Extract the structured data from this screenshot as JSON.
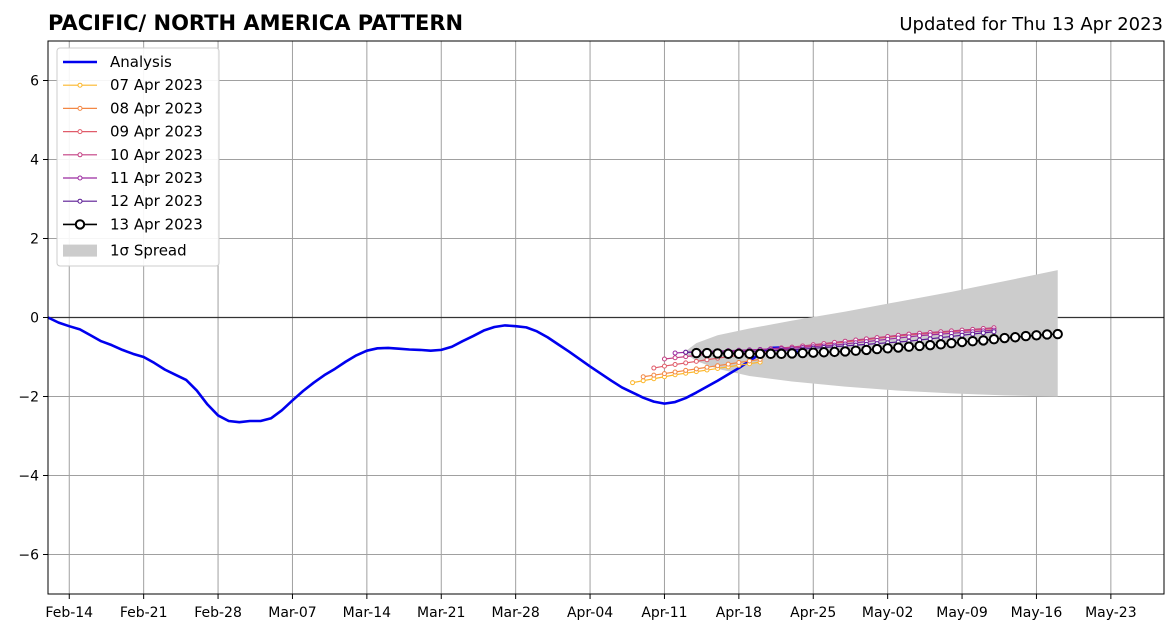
{
  "chart_data": {
    "type": "line",
    "title": "PACIFIC/ NORTH AMERICA PATTERN",
    "subtitle": "Updated for Thu 13 Apr 2023",
    "xlabel": "",
    "ylabel": "",
    "x_start": "2023-02-12",
    "x_end": "2023-05-28",
    "ylim": [
      -7,
      7
    ],
    "yticks": [
      -6,
      -4,
      -2,
      0,
      2,
      4,
      6
    ],
    "xticks": [
      "Feb-14",
      "Feb-21",
      "Feb-28",
      "Mar-07",
      "Mar-14",
      "Mar-21",
      "Mar-28",
      "Apr-04",
      "Apr-11",
      "Apr-18",
      "Apr-25",
      "May-02",
      "May-09",
      "May-16",
      "May-23"
    ],
    "xtick_dates": [
      "2023-02-14",
      "2023-02-21",
      "2023-02-28",
      "2023-03-07",
      "2023-03-14",
      "2023-03-21",
      "2023-03-28",
      "2023-04-04",
      "2023-04-11",
      "2023-04-18",
      "2023-04-25",
      "2023-05-02",
      "2023-05-09",
      "2023-05-16",
      "2023-05-23"
    ],
    "grid": true,
    "legend_position": "top-left",
    "analysis": {
      "name": "Analysis",
      "color": "#0000ee",
      "start_date": "2023-02-12",
      "values": [
        0.0,
        -0.13,
        -0.22,
        -0.3,
        -0.45,
        -0.6,
        -0.7,
        -0.82,
        -0.92,
        -1.0,
        -1.15,
        -1.32,
        -1.45,
        -1.58,
        -1.85,
        -2.2,
        -2.48,
        -2.62,
        -2.65,
        -2.62,
        -2.62,
        -2.55,
        -2.35,
        -2.1,
        -1.86,
        -1.65,
        -1.46,
        -1.3,
        -1.12,
        -0.96,
        -0.84,
        -0.78,
        -0.77,
        -0.79,
        -0.81,
        -0.82,
        -0.84,
        -0.82,
        -0.74,
        -0.6,
        -0.47,
        -0.33,
        -0.24,
        -0.2,
        -0.22,
        -0.25,
        -0.35,
        -0.5,
        -0.68,
        -0.86,
        -1.05,
        -1.24,
        -1.42,
        -1.6,
        -1.77,
        -1.9,
        -2.03,
        -2.13,
        -2.18,
        -2.14,
        -2.04,
        -1.9,
        -1.75,
        -1.6,
        -1.44,
        -1.28,
        -1.1,
        -0.92,
        -0.77,
        -0.76,
        -0.84,
        -0.9
      ]
    },
    "series": [
      {
        "name": "07 Apr 2023",
        "color": "#fcb72c",
        "start_date": "2023-04-08",
        "values": [
          -1.65,
          -1.6,
          -1.55,
          -1.5,
          -1.45,
          -1.41,
          -1.37,
          -1.33,
          -1.29,
          -1.25,
          -1.21,
          -1.17,
          -1.13
        ]
      },
      {
        "name": "08 Apr 2023",
        "color": "#f38744",
        "start_date": "2023-04-09",
        "values": [
          -1.5,
          -1.46,
          -1.42,
          -1.38,
          -1.34,
          -1.3,
          -1.26,
          -1.22,
          -1.18,
          -1.14,
          -1.1,
          -1.06
        ]
      },
      {
        "name": "09 Apr 2023",
        "color": "#e05c6a",
        "start_date": "2023-04-10",
        "values": [
          -1.28,
          -1.23,
          -1.19,
          -1.15,
          -1.11,
          -1.07,
          -1.03,
          -0.99,
          -0.96,
          -0.92,
          -0.89,
          -0.85,
          -0.82,
          -0.78,
          -0.75,
          -0.71,
          -0.68,
          -0.65,
          -0.62,
          -0.59,
          -0.56,
          -0.53,
          -0.5,
          -0.47,
          -0.44,
          -0.42,
          -0.4,
          -0.38,
          -0.36,
          -0.34,
          -0.32,
          -0.3,
          -0.28
        ]
      },
      {
        "name": "10 Apr 2023",
        "color": "#c33e82",
        "start_date": "2023-04-11",
        "values": [
          -1.05,
          -1.02,
          -0.99,
          -0.96,
          -0.93,
          -0.9,
          -0.87,
          -0.85,
          -0.83,
          -0.81,
          -0.79,
          -0.77,
          -0.75,
          -0.72,
          -0.69,
          -0.66,
          -0.63,
          -0.6,
          -0.57,
          -0.54,
          -0.51,
          -0.48,
          -0.45,
          -0.42,
          -0.4,
          -0.38,
          -0.36,
          -0.34,
          -0.32,
          -0.3,
          -0.28,
          -0.26
        ]
      },
      {
        "name": "11 Apr 2023",
        "color": "#9b2aa0",
        "start_date": "2023-04-12",
        "values": [
          -0.9,
          -0.88,
          -0.87,
          -0.86,
          -0.85,
          -0.84,
          -0.83,
          -0.82,
          -0.81,
          -0.8,
          -0.79,
          -0.78,
          -0.76,
          -0.74,
          -0.72,
          -0.7,
          -0.67,
          -0.64,
          -0.61,
          -0.58,
          -0.55,
          -0.52,
          -0.49,
          -0.46,
          -0.44,
          -0.42,
          -0.4,
          -0.38,
          -0.36,
          -0.34,
          -0.32
        ]
      },
      {
        "name": "12 Apr 2023",
        "color": "#5a1a94",
        "start_date": "2023-04-13",
        "values": [
          -0.88,
          -0.88,
          -0.88,
          -0.88,
          -0.88,
          -0.87,
          -0.86,
          -0.85,
          -0.84,
          -0.83,
          -0.82,
          -0.8,
          -0.78,
          -0.76,
          -0.74,
          -0.72,
          -0.7,
          -0.68,
          -0.66,
          -0.64,
          -0.62,
          -0.6,
          -0.57,
          -0.54,
          -0.51,
          -0.48,
          -0.45,
          -0.42,
          -0.39,
          -0.36
        ]
      },
      {
        "name": "13 Apr 2023",
        "color": "#000000",
        "start_date": "2023-04-14",
        "values": [
          -0.9,
          -0.9,
          -0.91,
          -0.92,
          -0.92,
          -0.92,
          -0.92,
          -0.92,
          -0.92,
          -0.91,
          -0.9,
          -0.89,
          -0.88,
          -0.87,
          -0.86,
          -0.84,
          -0.82,
          -0.8,
          -0.78,
          -0.76,
          -0.74,
          -0.72,
          -0.7,
          -0.68,
          -0.65,
          -0.62,
          -0.6,
          -0.58,
          -0.55,
          -0.52,
          -0.5,
          -0.47,
          -0.45,
          -0.43,
          -0.42
        ]
      }
    ],
    "spread": {
      "name": "1σ Spread",
      "color": "#cccccc",
      "dates": [
        "2023-04-13",
        "2023-04-14",
        "2023-04-16",
        "2023-04-19",
        "2023-04-23",
        "2023-04-28",
        "2023-05-03",
        "2023-05-08",
        "2023-05-13",
        "2023-05-18"
      ],
      "upper": [
        -0.85,
        -0.65,
        -0.45,
        -0.28,
        -0.08,
        0.15,
        0.4,
        0.65,
        0.92,
        1.2
      ],
      "lower": [
        -0.92,
        -1.1,
        -1.3,
        -1.48,
        -1.62,
        -1.75,
        -1.85,
        -1.92,
        -1.97,
        -2.0
      ]
    }
  }
}
